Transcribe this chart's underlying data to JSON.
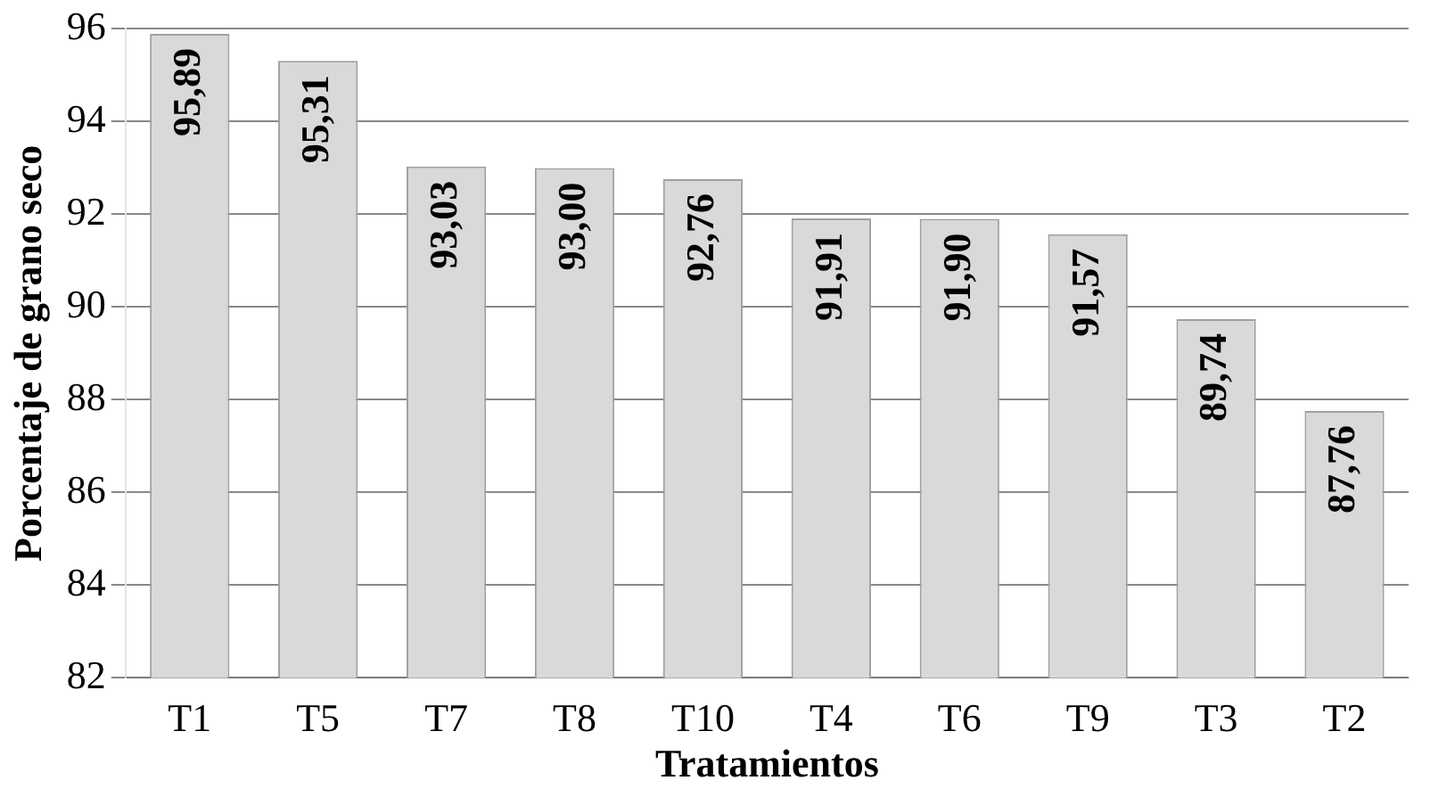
{
  "chart_data": {
    "type": "bar",
    "xlabel": "Tratamientos",
    "ylabel": "Porcentaje de grano seco",
    "categories": [
      "T1",
      "T5",
      "T7",
      "T8",
      "T10",
      "T4",
      "T6",
      "T9",
      "T3",
      "T2"
    ],
    "values": [
      95.89,
      95.31,
      93.03,
      93.0,
      92.76,
      91.91,
      91.9,
      91.57,
      89.74,
      87.76
    ],
    "value_labels": [
      "95,89",
      "95,31",
      "93,03",
      "93,00",
      "92,76",
      "91,91",
      "91,90",
      "91,57",
      "89,74",
      "87,76"
    ],
    "color": "#d9d9d9",
    "ylim": [
      82,
      96
    ],
    "yticks": [
      82,
      84,
      86,
      88,
      90,
      92,
      94,
      96
    ],
    "grid": "y",
    "legend": false
  }
}
